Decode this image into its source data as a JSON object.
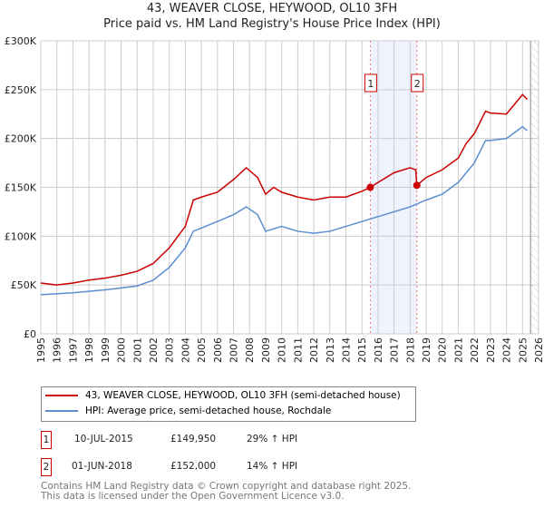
{
  "chart_data": {
    "type": "line",
    "title": "43, WEAVER CLOSE, HEYWOOD, OL10 3FH",
    "subtitle": "Price paid vs. HM Land Registry's House Price Index (HPI)",
    "xlim": [
      1995,
      2026
    ],
    "ylim": [
      0,
      300000
    ],
    "x_ticks": [
      "1995",
      "1996",
      "1997",
      "1998",
      "1999",
      "2000",
      "2001",
      "2002",
      "2003",
      "2004",
      "2005",
      "2006",
      "2007",
      "2008",
      "2009",
      "2010",
      "2011",
      "2012",
      "2013",
      "2014",
      "2015",
      "2016",
      "2017",
      "2018",
      "2019",
      "2020",
      "2021",
      "2022",
      "2023",
      "2024",
      "2025",
      "2026"
    ],
    "y_ticks": [
      {
        "v": 0,
        "l": "£0"
      },
      {
        "v": 50000,
        "l": "£50K"
      },
      {
        "v": 100000,
        "l": "£100K"
      },
      {
        "v": 150000,
        "l": "£150K"
      },
      {
        "v": 200000,
        "l": "£200K"
      },
      {
        "v": 250000,
        "l": "£250K"
      },
      {
        "v": 300000,
        "l": "£300K"
      }
    ],
    "grid": true,
    "series": [
      {
        "name": "43, WEAVER CLOSE, HEYWOOD, OL10 3FH (semi-detached house)",
        "color": "#cc0000",
        "x": [
          1995,
          1996,
          1997,
          1998,
          1999,
          2000,
          2001,
          2002,
          2003,
          2004,
          2004.5,
          2005,
          2006,
          2007,
          2007.8,
          2008.5,
          2009,
          2009.5,
          2010,
          2011,
          2012,
          2013,
          2014,
          2015,
          2015.52,
          2016,
          2017,
          2018,
          2018.35,
          2018.42,
          2019,
          2020,
          2021,
          2021.5,
          2022,
          2022.7,
          2023,
          2024,
          2024.5,
          2025,
          2025.3
        ],
        "y": [
          52000,
          50000,
          52000,
          55000,
          57000,
          60000,
          64000,
          72000,
          88000,
          110000,
          137000,
          140000,
          145000,
          158000,
          170000,
          160000,
          143000,
          150000,
          145000,
          140000,
          137000,
          140000,
          140000,
          146000,
          149950,
          155000,
          165000,
          170000,
          168000,
          152000,
          160000,
          168000,
          180000,
          195000,
          205000,
          228000,
          226000,
          225000,
          235000,
          245000,
          240000
        ]
      },
      {
        "name": "HPI: Average price, semi-detached house, Rochdale",
        "color": "#5b8fd0",
        "x": [
          1995,
          1997,
          1999,
          2001,
          2002,
          2003,
          2004,
          2004.5,
          2006,
          2007,
          2007.8,
          2008.5,
          2009,
          2010,
          2011,
          2012,
          2013,
          2014,
          2015,
          2016,
          2017,
          2018,
          2019,
          2020,
          2021,
          2022,
          2022.7,
          2023,
          2024,
          2025,
          2025.3
        ],
        "y": [
          40000,
          42000,
          45000,
          49000,
          55000,
          68000,
          88000,
          105000,
          115000,
          122000,
          130000,
          122000,
          105000,
          110000,
          105000,
          103000,
          105000,
          110000,
          115000,
          120000,
          125000,
          130000,
          137000,
          143000,
          155000,
          175000,
          198000,
          198000,
          200000,
          212000,
          208000
        ]
      }
    ],
    "sales": [
      {
        "id": "1",
        "date": "10-JUL-2015",
        "x": 2015.52,
        "price": "£149,950",
        "value": 149950,
        "hpi": "29% ↑ HPI"
      },
      {
        "id": "2",
        "date": "01-JUN-2018",
        "x": 2018.42,
        "price": "£152,000",
        "value": 152000,
        "hpi": "14% ↑ HPI"
      }
    ],
    "shaded_range": [
      2015.52,
      2018.42
    ],
    "forecast_from": 2025.5,
    "legend_position": "below"
  },
  "footer": {
    "line1": "Contains HM Land Registry data © Crown copyright and database right 2025.",
    "line2": "This data is licensed under the Open Government Licence v3.0."
  }
}
